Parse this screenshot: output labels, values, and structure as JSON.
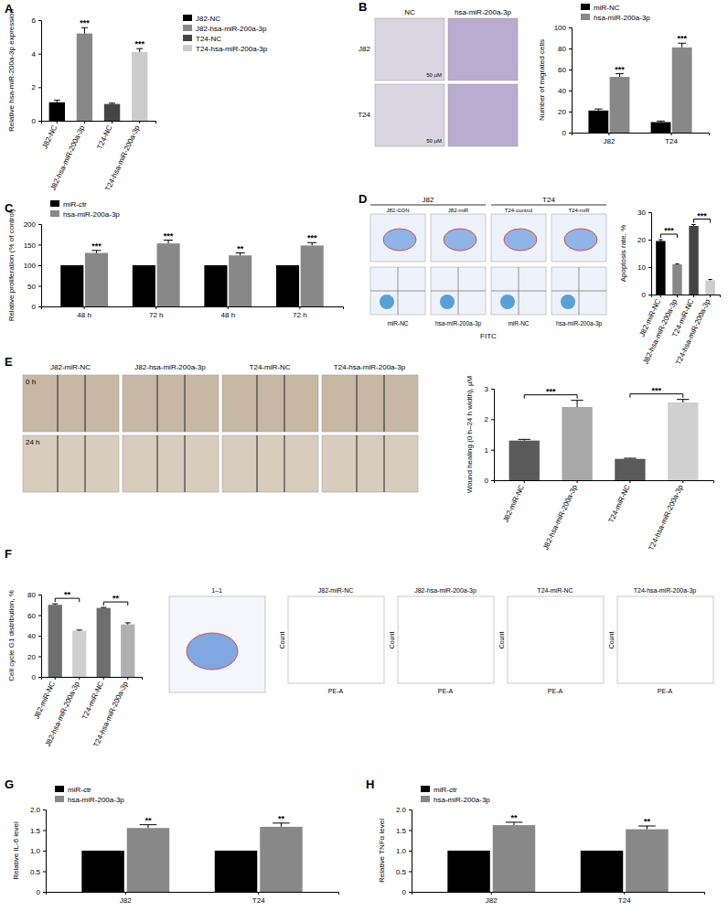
{
  "chart_data": [
    {
      "type": "bar",
      "title": "A",
      "categories": [
        "J82-NC",
        "J82-hsa-miR-200a-3p",
        "T24-NC",
        "T24-hsa-miR-200a-3p"
      ],
      "values": [
        1.1,
        5.2,
        1.0,
        4.1
      ],
      "errors": [
        0.12,
        0.35,
        0.05,
        0.2
      ],
      "colors": [
        "#000000",
        "#888888",
        "#444444",
        "#cccccc"
      ],
      "significance": [
        null,
        "***",
        null,
        "***"
      ],
      "ylabel": "Relative hsa-miR-200a-3p expression",
      "ylim": [
        0,
        6
      ],
      "yticks": [
        0,
        2,
        4,
        6
      ],
      "legend": "right"
    },
    {
      "type": "bar",
      "title": "B",
      "categories": [
        "J82",
        "T24"
      ],
      "series": [
        {
          "name": "miR-NC",
          "color": "#000000",
          "values": [
            21,
            10
          ],
          "errors": [
            1.5,
            1
          ]
        },
        {
          "name": "hsa-miR-200a-3p",
          "color": "#888888",
          "values": [
            53,
            81
          ],
          "errors": [
            3,
            4
          ],
          "significance": [
            "***",
            "***"
          ]
        }
      ],
      "ylabel": "Number of migrated cells",
      "ylim": [
        0,
        100
      ],
      "yticks": [
        0,
        20,
        40,
        60,
        80,
        100
      ],
      "legend": "upper left"
    },
    {
      "type": "bar",
      "title": "C",
      "categories": [
        "48 h",
        "72 h",
        "48 h",
        "72 h"
      ],
      "series": [
        {
          "name": "miR-ctr",
          "color": "#000000",
          "values": [
            100,
            100,
            100,
            100
          ]
        },
        {
          "name": "hsa-miR-200a-3p",
          "color": "#888888",
          "values": [
            130,
            153,
            124,
            148
          ],
          "errors": [
            6,
            8,
            6,
            7
          ],
          "significance": [
            "***",
            "***",
            "**",
            "***"
          ]
        }
      ],
      "ylabel": "Relative proliferation (% of control)",
      "ylim": [
        0,
        200
      ],
      "yticks": [
        0,
        50,
        100,
        150,
        200
      ],
      "legend": "upper left"
    },
    {
      "type": "bar",
      "title": "D",
      "categories": [
        "J82-miR-NC",
        "J82-hsa-miR-200a-3p",
        "T24-miR-NC",
        "T24-hsa-miR-200a-3p"
      ],
      "values": [
        19.5,
        11,
        25,
        5.2
      ],
      "errors": [
        0.5,
        0.2,
        0.5,
        0.3
      ],
      "colors": [
        "#000000",
        "#888888",
        "#444444",
        "#cccccc"
      ],
      "comparisons": [
        {
          "pair": [
            0,
            1
          ],
          "text": "***"
        },
        {
          "pair": [
            2,
            3
          ],
          "text": "***"
        }
      ],
      "ylabel": "Apoptosis rate, %",
      "ylim": [
        0,
        30
      ],
      "yticks": [
        0,
        10,
        20,
        30
      ]
    },
    {
      "type": "bar",
      "title": "E",
      "categories": [
        "J82-miR-NC",
        "J82-hsa-miR-200a-3p",
        "T24-miR-NC",
        "T24-hsa-miR-200a-3p"
      ],
      "values": [
        1.3,
        2.4,
        0.7,
        2.55
      ],
      "errors": [
        0.04,
        0.22,
        0.02,
        0.1
      ],
      "colors": [
        "#5a5a5a",
        "#a8a8a8",
        "#5a5a5a",
        "#d0d0d0"
      ],
      "comparisons": [
        {
          "pair": [
            0,
            1
          ],
          "text": "***"
        },
        {
          "pair": [
            2,
            3
          ],
          "text": "***"
        }
      ],
      "ylabel": "Wound healing (0 h–24 h width), μM",
      "ylim": [
        0,
        3
      ],
      "yticks": [
        0,
        1,
        2,
        3
      ]
    },
    {
      "type": "bar",
      "title": "F",
      "categories": [
        "J82-miR-NC",
        "J82-hsa-miR-200a-3p",
        "T24-miR-NC",
        "T24-hsa-miR-200a-3p"
      ],
      "values": [
        70,
        45,
        67,
        51
      ],
      "errors": [
        1,
        0.5,
        0.5,
        1.5
      ],
      "colors": [
        "#6e6e6e",
        "#d0d0d0",
        "#6e6e6e",
        "#b0b0b0"
      ],
      "comparisons": [
        {
          "pair": [
            0,
            1
          ],
          "text": "**"
        },
        {
          "pair": [
            2,
            3
          ],
          "text": "**"
        }
      ],
      "ylabel": "Cell cycle G1 distribution, %",
      "ylim": [
        0,
        80
      ],
      "yticks": [
        0,
        20,
        40,
        60,
        80
      ]
    },
    {
      "type": "bar",
      "title": "G",
      "categories": [
        "J82",
        "T24"
      ],
      "series": [
        {
          "name": "miR-ctr",
          "color": "#000000",
          "values": [
            1,
            1
          ]
        },
        {
          "name": "hsa-miR-200a-3p",
          "color": "#888888",
          "values": [
            1.55,
            1.58
          ],
          "errors": [
            0.08,
            0.09
          ],
          "significance": [
            "**",
            "**"
          ]
        }
      ],
      "ylabel": "Relative IL-6 level",
      "ylim": [
        0,
        2
      ],
      "yticks": [
        0,
        0.5,
        {
          "value": 1,
          "label": "1.0"
        },
        1.5,
        {
          "value": 2,
          "label": "2.0"
        }
      ],
      "legend": "upper left"
    },
    {
      "type": "bar",
      "title": "H",
      "categories": [
        "J82",
        "T24"
      ],
      "series": [
        {
          "name": "miR-ctr",
          "color": "#000000",
          "values": [
            1,
            1
          ]
        },
        {
          "name": "hsa-miR-200a-3p",
          "color": "#888888",
          "values": [
            1.62,
            1.52
          ],
          "errors": [
            0.07,
            0.08
          ],
          "significance": [
            "**",
            "**"
          ]
        }
      ],
      "ylabel": "Relative TNFα level",
      "ylim": [
        0,
        2
      ],
      "yticks": [
        0,
        0.5,
        {
          "value": 1,
          "label": "1.0"
        },
        1.5,
        {
          "value": 2,
          "label": "2.0"
        }
      ],
      "legend": "upper left"
    }
  ],
  "image_panels": [
    {
      "columns": [
        "NC",
        "hsa-miR-200a-3p"
      ],
      "rows": [
        "J82",
        "T24"
      ],
      "scale": "50 μM"
    },
    {
      "groups": [
        "J82",
        "T24"
      ],
      "plot_titles": [
        "J82-CON",
        "J82-miR",
        "T24-control",
        "T24-miR"
      ],
      "captions": [
        "miR-NC",
        "hsa-miR-200a-3p",
        "miR-NC",
        "hsa-miR-200a-3p"
      ],
      "xlabel": "FITC"
    },
    {
      "columns": [
        "J82-miR-NC",
        "J82-hsa-miR-200a-3p",
        "T24-miR-NC",
        "T24-hsa-miR-200a-3p"
      ],
      "rows": [
        "0 h",
        "24 h"
      ]
    },
    {
      "scatter_title": "1–1",
      "plot_titles": [
        "J82-miR-NC",
        "J82-hsa-miR-200a-3p",
        "T24-miR-NC",
        "T24-hsa-miR-200a-3p"
      ],
      "xlabel": "PE-A",
      "ylabel": "Count"
    }
  ]
}
